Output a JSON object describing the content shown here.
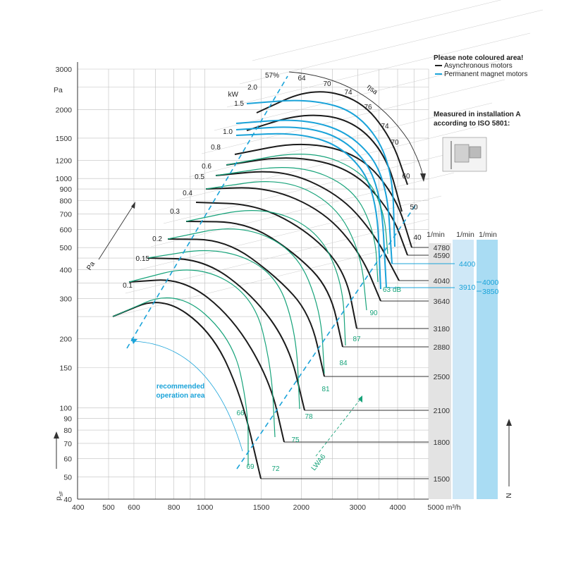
{
  "chart_data": {
    "type": "line",
    "title": "",
    "xlabel": "m³/h",
    "ylabel": "p_sF",
    "ylabel_unit": "Pa",
    "xscale": "log",
    "yscale": "log",
    "xlim": [
      400,
      5000
    ],
    "ylim": [
      40,
      3000
    ],
    "x_ticks": [
      "400",
      "500",
      "600",
      "800",
      "1000",
      "1500",
      "2000",
      "3000",
      "4000",
      "5000 m³/h"
    ],
    "y_ticks": [
      "40",
      "50",
      "60",
      "70",
      "80",
      "90",
      "100",
      "150",
      "200",
      "300",
      "400",
      "500",
      "600",
      "700",
      "800",
      "900",
      "1000",
      "1200",
      "1500",
      "2000",
      "3000"
    ],
    "grid": true,
    "speed_axis_label": "N",
    "speed_columns": [
      {
        "header": "1/min",
        "color": "#333333",
        "speeds": [
          "4780",
          "4590",
          "4040",
          "3640",
          "3180",
          "2880",
          "2500",
          "2100",
          "1800",
          "1500"
        ]
      },
      {
        "header": "1/min",
        "color": "#1aa3d9",
        "speeds": [
          "4400",
          "3910"
        ]
      },
      {
        "header": "1/min",
        "color": "#1aa3d9",
        "speeds": [
          "4000",
          "3850"
        ]
      }
    ],
    "power_axis_label": "kW",
    "power_labels": [
      "0.1",
      "0.15",
      "0.2",
      "0.3",
      "0.4",
      "0.5",
      "0.6",
      "0.8",
      "1.0",
      "1.5",
      "2.0"
    ],
    "power_axis_name": "Pa",
    "efficiency_axis_label": "ηsa",
    "efficiency_labels": [
      "57%",
      "64",
      "70",
      "74",
      "76",
      "74",
      "70",
      "60",
      "50",
      "40"
    ],
    "noise_axis_label": "LWA6",
    "noise_labels": [
      "63 dB",
      "66",
      "69",
      "72",
      "75",
      "78",
      "81",
      "84",
      "87",
      "90"
    ],
    "series": [
      {
        "name": "Asynchronous motors",
        "color": "#222222",
        "speeds": [
          4780,
          4590,
          4040,
          3640,
          3180,
          2880,
          2500,
          2100,
          1800,
          1500
        ]
      },
      {
        "name": "Permanent magnet motors",
        "color": "#1aa3d9",
        "speeds": [
          4400,
          4000,
          3910,
          3850
        ]
      }
    ],
    "annotation": "recommended operation area",
    "legend": {
      "title": "Please note coloured area!",
      "items": [
        {
          "label": "Asynchronous motors",
          "color": "#222222"
        },
        {
          "label": "Permanent magnet motors",
          "color": "#1aa3d9"
        }
      ]
    },
    "measurement_note": [
      "Measured in installation A",
      "according to ISO 5801:"
    ]
  }
}
